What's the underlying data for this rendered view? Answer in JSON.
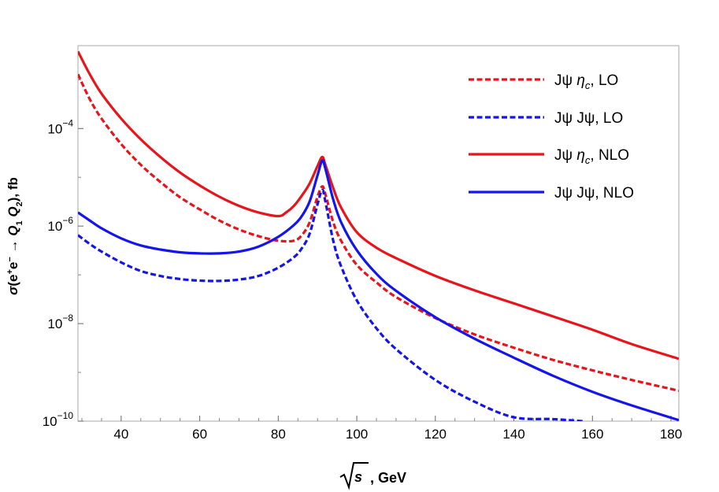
{
  "chart_data": {
    "type": "line",
    "xlabel": "√s , GeV",
    "ylabel": "σ(e⁺e⁻ → Q₁ Q₂), fb",
    "xlim": [
      29,
      182
    ],
    "ylim": [
      1e-10,
      0.005
    ],
    "yscale": "log",
    "xticks": [
      40,
      60,
      80,
      100,
      120,
      140,
      160,
      180
    ],
    "xtick_labels": [
      "40",
      "60",
      "80",
      "100",
      "120",
      "140",
      "160",
      "180"
    ],
    "yticks": [
      1e-10,
      1e-08,
      1e-06,
      0.0001
    ],
    "ytick_labels": [
      {
        "base": "10",
        "exp": "−10"
      },
      {
        "base": "10",
        "exp": "−8"
      },
      {
        "base": "10",
        "exp": "−6"
      },
      {
        "base": "10",
        "exp": "−4"
      }
    ],
    "legend_position": "top-right",
    "grid": false,
    "series": [
      {
        "name": "Jψ ηc, LO",
        "legend": {
          "text": "Jψ ",
          "sym": "η",
          "sub": "c",
          "suffix": ", LO"
        },
        "color": "#e8141c",
        "dash": true,
        "x": [
          29,
          32,
          35,
          40,
          45,
          50,
          55,
          60,
          65,
          70,
          75,
          80,
          84,
          86,
          88,
          90,
          91.2,
          92,
          94,
          96,
          100,
          105,
          110,
          120,
          130,
          140,
          150,
          160,
          170,
          182
        ],
        "y": [
          0.0013,
          0.0004,
          0.00016,
          4.8e-05,
          1.8e-05,
          8e-06,
          3.9e-06,
          2.2e-06,
          1.3e-06,
          8.5e-07,
          6.2e-07,
          5e-07,
          5e-07,
          6.5e-07,
          1.2e-06,
          4e-06,
          6.5e-06,
          4.5e-06,
          1.2e-06,
          5e-07,
          1.6e-07,
          7e-08,
          3.5e-08,
          1.3e-08,
          6e-09,
          3.2e-09,
          1.8e-09,
          1.1e-09,
          7e-10,
          4.2e-10
        ]
      },
      {
        "name": "Jψ Jψ, LO",
        "legend": {
          "text": "Jψ Jψ",
          "sym": "",
          "sub": "",
          "suffix": ", LO"
        },
        "color": "#1414ee",
        "dash": true,
        "x": [
          29,
          32,
          35,
          40,
          45,
          50,
          55,
          60,
          65,
          70,
          75,
          80,
          84,
          86,
          88,
          90,
          91.2,
          92,
          94,
          96,
          100,
          105,
          110,
          120,
          130,
          140,
          150,
          157.5
        ],
        "y": [
          6.5e-07,
          4.3e-07,
          3e-07,
          1.8e-07,
          1.2e-07,
          9.5e-08,
          8.2e-08,
          7.6e-08,
          7.5e-08,
          8e-08,
          9.5e-08,
          1.4e-07,
          2.3e-07,
          3.5e-07,
          7e-07,
          2.8e-06,
          5.5e-06,
          3.2e-06,
          5e-07,
          1.5e-07,
          3e-08,
          8e-09,
          3e-09,
          7e-10,
          2.5e-10,
          1.2e-10,
          1.1e-10,
          1e-10
        ]
      },
      {
        "name": "Jψ ηc, NLO",
        "legend": {
          "text": "Jψ ",
          "sym": "η",
          "sub": "c",
          "suffix": ", NLO"
        },
        "color": "#e8141c",
        "dash": false,
        "x": [
          29,
          32,
          35,
          40,
          45,
          50,
          55,
          60,
          65,
          70,
          75,
          80,
          82,
          84,
          86,
          88,
          90,
          91.2,
          92,
          94,
          96,
          100,
          105,
          110,
          120,
          130,
          140,
          150,
          160,
          170,
          182
        ],
        "y": [
          0.0038,
          0.0013,
          0.00052,
          0.00016,
          6e-05,
          2.6e-05,
          1.25e-05,
          6.8e-06,
          4e-06,
          2.6e-06,
          1.9e-06,
          1.6e-06,
          1.9e-06,
          2.6e-06,
          4.2e-06,
          7.5e-06,
          1.7e-05,
          2.6e-05,
          1.8e-05,
          6e-06,
          2.4e-06,
          7.5e-07,
          3.6e-07,
          2.2e-07,
          9.5e-08,
          4.8e-08,
          2.6e-08,
          1.4e-08,
          7.5e-09,
          3.8e-09,
          1.9e-09
        ]
      },
      {
        "name": "Jψ Jψ, NLO",
        "legend": {
          "text": "Jψ Jψ",
          "sym": "",
          "sub": "",
          "suffix": ", NLO"
        },
        "color": "#1414ee",
        "dash": false,
        "x": [
          29,
          32,
          35,
          40,
          45,
          50,
          55,
          60,
          65,
          70,
          75,
          80,
          84,
          86,
          88,
          90,
          91.2,
          92,
          94,
          96,
          100,
          105,
          110,
          120,
          130,
          140,
          150,
          160,
          170,
          182
        ],
        "y": [
          1.9e-06,
          1.3e-06,
          9e-07,
          5.6e-07,
          4e-07,
          3.3e-07,
          2.9e-07,
          2.75e-07,
          2.75e-07,
          3e-07,
          3.8e-07,
          6e-07,
          1.05e-06,
          1.6e-06,
          3.2e-06,
          1.1e-05,
          2.2e-05,
          1.5e-05,
          3.5e-06,
          1.2e-06,
          3.2e-07,
          1.05e-07,
          4.7e-08,
          1.35e-08,
          4.9e-09,
          2e-09,
          8.5e-10,
          4e-10,
          2.1e-10,
          1.05e-10
        ]
      }
    ]
  }
}
